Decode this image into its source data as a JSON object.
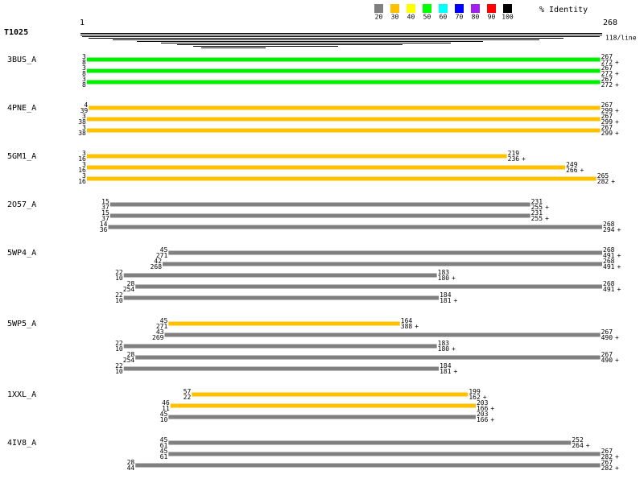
{
  "query": {
    "name": "T1025",
    "start": 1,
    "end": 268,
    "scale": "118/line"
  },
  "legend": {
    "title": "% Identity",
    "items": [
      {
        "label": "20",
        "color": "#808080"
      },
      {
        "label": "30",
        "color": "#ffc000"
      },
      {
        "label": "40",
        "color": "#ffff00"
      },
      {
        "label": "50",
        "color": "#00ff00"
      },
      {
        "label": "60",
        "color": "#00ffff"
      },
      {
        "label": "70",
        "color": "#0000ff"
      },
      {
        "label": "80",
        "color": "#a020f0"
      },
      {
        "label": "90",
        "color": "#ff0000"
      },
      {
        "label": "100",
        "color": "#000000"
      }
    ]
  },
  "hits": [
    {
      "name": "3BUS_A",
      "alignments": [
        {
          "q_start": 3,
          "s_start": 8,
          "q_end": 267,
          "s_end": 272,
          "strand": "+",
          "color": "#00ee00"
        },
        {
          "q_start": 3,
          "s_start": 8,
          "q_end": 267,
          "s_end": 272,
          "strand": "+",
          "color": "#00ee00"
        },
        {
          "q_start": 3,
          "s_start": 8,
          "q_end": 267,
          "s_end": 272,
          "strand": "+",
          "color": "#00ee00"
        }
      ]
    },
    {
      "name": "4PNE_A",
      "alignments": [
        {
          "q_start": 4,
          "s_start": 39,
          "q_end": 267,
          "s_end": 299,
          "strand": "+",
          "color": "#ffc000"
        },
        {
          "q_start": 3,
          "s_start": 38,
          "q_end": 267,
          "s_end": 299,
          "strand": "+",
          "color": "#ffc000"
        },
        {
          "q_start": 3,
          "s_start": 38,
          "q_end": 267,
          "s_end": 299,
          "strand": "+",
          "color": "#ffc000"
        }
      ]
    },
    {
      "name": "5GM1_A",
      "alignments": [
        {
          "q_start": 3,
          "s_start": 16,
          "q_end": 219,
          "s_end": 236,
          "strand": "+",
          "color": "#ffc000"
        },
        {
          "q_start": 3,
          "s_start": 16,
          "q_end": 249,
          "s_end": 266,
          "strand": "+",
          "color": "#ffc000"
        },
        {
          "q_start": 3,
          "s_start": 16,
          "q_end": 265,
          "s_end": 282,
          "strand": "+",
          "color": "#ffc000"
        }
      ]
    },
    {
      "name": "2O57_A",
      "alignments": [
        {
          "q_start": 15,
          "s_start": 37,
          "q_end": 231,
          "s_end": 255,
          "strand": "+",
          "color": "#808080"
        },
        {
          "q_start": 15,
          "s_start": 37,
          "q_end": 231,
          "s_end": 255,
          "strand": "+",
          "color": "#808080"
        },
        {
          "q_start": 14,
          "s_start": 36,
          "q_end": 268,
          "s_end": 294,
          "strand": "+",
          "color": "#808080"
        }
      ]
    },
    {
      "name": "5WP4_A",
      "alignments": [
        {
          "q_start": 45,
          "s_start": 271,
          "q_end": 268,
          "s_end": 491,
          "strand": "+",
          "color": "#808080"
        },
        {
          "q_start": 42,
          "s_start": 268,
          "q_end": 268,
          "s_end": 491,
          "strand": "+",
          "color": "#808080"
        },
        {
          "q_start": 22,
          "s_start": 10,
          "q_end": 183,
          "s_end": 180,
          "strand": "+",
          "color": "#808080"
        },
        {
          "q_start": 28,
          "s_start": 254,
          "q_end": 268,
          "s_end": 491,
          "strand": "+",
          "color": "#808080"
        },
        {
          "q_start": 22,
          "s_start": 10,
          "q_end": 184,
          "s_end": 181,
          "strand": "+",
          "color": "#808080"
        }
      ]
    },
    {
      "name": "5WP5_A",
      "alignments": [
        {
          "q_start": 45,
          "s_start": 271,
          "q_end": 164,
          "s_end": 388,
          "strand": "+",
          "color": "#ffc000"
        },
        {
          "q_start": 43,
          "s_start": 269,
          "q_end": 267,
          "s_end": 490,
          "strand": "+",
          "color": "#808080"
        },
        {
          "q_start": 22,
          "s_start": 10,
          "q_end": 183,
          "s_end": 180,
          "strand": "+",
          "color": "#808080"
        },
        {
          "q_start": 28,
          "s_start": 254,
          "q_end": 267,
          "s_end": 490,
          "strand": "+",
          "color": "#808080"
        },
        {
          "q_start": 22,
          "s_start": 10,
          "q_end": 184,
          "s_end": 181,
          "strand": "+",
          "color": "#808080"
        }
      ]
    },
    {
      "name": "1XXL_A",
      "alignments": [
        {
          "q_start": 57,
          "s_start": 22,
          "q_end": 199,
          "s_end": 162,
          "strand": "+",
          "color": "#ffc000"
        },
        {
          "q_start": 46,
          "s_start": 11,
          "q_end": 203,
          "s_end": 166,
          "strand": "+",
          "color": "#ffc000"
        },
        {
          "q_start": 45,
          "s_start": 10,
          "q_end": 203,
          "s_end": 166,
          "strand": "+",
          "color": "#808080"
        }
      ]
    },
    {
      "name": "4IV8_A",
      "alignments": [
        {
          "q_start": 45,
          "s_start": 61,
          "q_end": 252,
          "s_end": 264,
          "strand": "+",
          "color": "#808080"
        },
        {
          "q_start": 45,
          "s_start": 61,
          "q_end": 267,
          "s_end": 282,
          "strand": "+",
          "color": "#808080"
        },
        {
          "q_start": 28,
          "s_start": 44,
          "q_end": 267,
          "s_end": 282,
          "strand": "+",
          "color": "#808080"
        }
      ]
    }
  ]
}
